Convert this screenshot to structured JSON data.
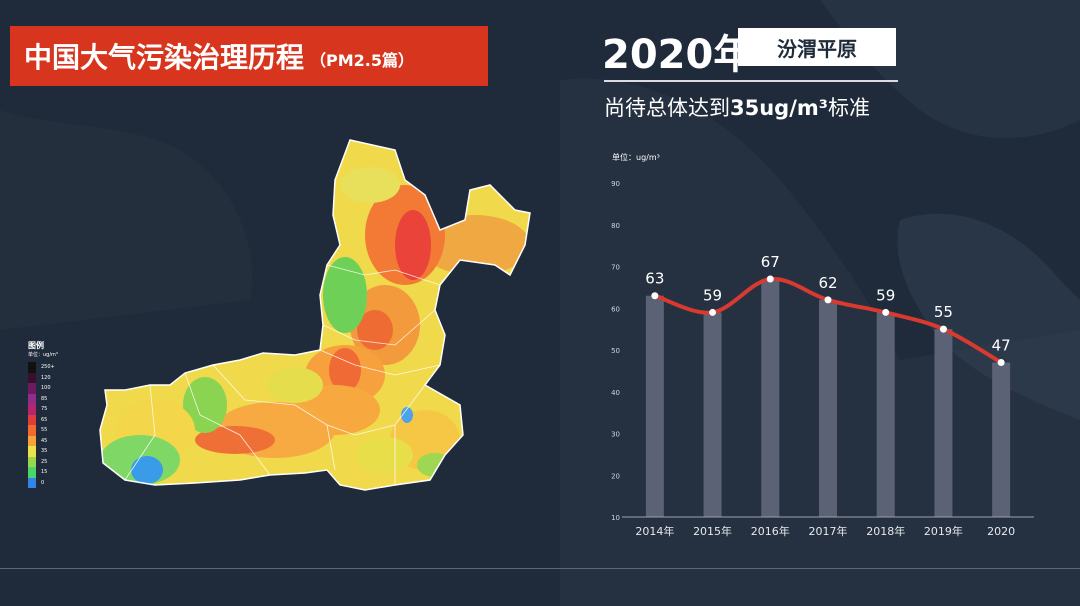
{
  "header": {
    "title": "中国大气污染治理历程",
    "subtitle": "（PM2.5篇）"
  },
  "panel": {
    "year": "2020年",
    "region": "汾渭平原",
    "status_prefix": "尚待总体达到",
    "status_unit": "35ug/m³",
    "status_suffix": "标准"
  },
  "legend": {
    "title": "图例",
    "unit": "单位：ug/m³",
    "items": [
      {
        "label": "250+",
        "color": "#111111"
      },
      {
        "label": "120",
        "color": "#3a0f2c"
      },
      {
        "label": "100",
        "color": "#6d1a63"
      },
      {
        "label": "85",
        "color": "#8e2e8a"
      },
      {
        "label": "75",
        "color": "#b3266b"
      },
      {
        "label": "65",
        "color": "#e23b3b"
      },
      {
        "label": "55",
        "color": "#f26a2e"
      },
      {
        "label": "45",
        "color": "#f7a23a"
      },
      {
        "label": "35",
        "color": "#eee24a"
      },
      {
        "label": "25",
        "color": "#9ad84a"
      },
      {
        "label": "15",
        "color": "#4cd36a"
      },
      {
        "label": "0",
        "color": "#2f86e8"
      }
    ]
  },
  "chart_data": {
    "type": "bar",
    "unit_label": "单位：ug/m³",
    "categories": [
      "2014年",
      "2015年",
      "2016年",
      "2017年",
      "2018年",
      "2019年",
      "2020"
    ],
    "values": [
      63,
      59,
      67,
      62,
      59,
      55,
      47
    ],
    "data_labels": [
      "63",
      "59",
      "67",
      "62",
      "59",
      "55",
      "47"
    ],
    "yticks": [
      "10",
      "20",
      "30",
      "40",
      "50",
      "60",
      "70",
      "80",
      "90"
    ],
    "ylim": [
      10,
      90
    ],
    "overlay": "line",
    "colors": {
      "bar": "#5b6275",
      "line": "#d83a2f",
      "point": "#ffffff"
    }
  }
}
